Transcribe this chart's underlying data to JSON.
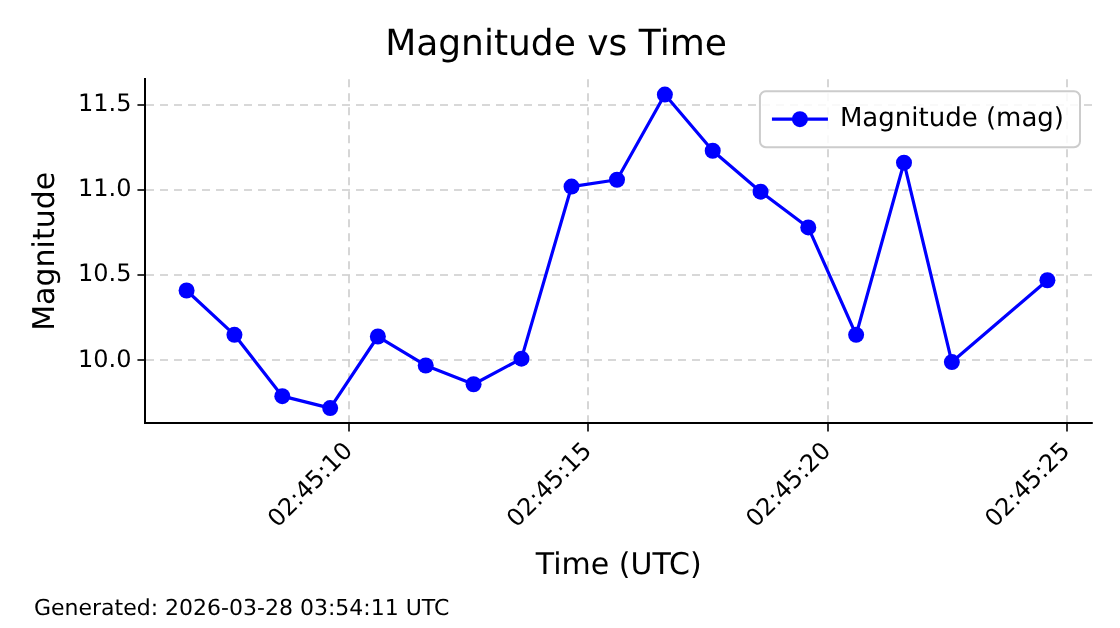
{
  "chart_data": {
    "type": "line",
    "title": "Magnitude vs Time",
    "xlabel": "Time (UTC)",
    "ylabel": "Magnitude",
    "x": [
      2.751833,
      2.752111,
      2.752389,
      2.752667,
      2.752944,
      2.753222,
      2.7535,
      2.753778,
      2.754069,
      2.754333,
      2.754611,
      2.754889,
      2.755167,
      2.755444,
      2.755722,
      2.756,
      2.756278,
      2.756833
    ],
    "series": [
      {
        "name": "Magnitude (mag)",
        "color": "#0000ff",
        "values": [
          10.41,
          10.15,
          9.79,
          9.72,
          10.14,
          9.97,
          9.86,
          10.01,
          11.02,
          11.06,
          11.56,
          11.23,
          10.99,
          10.78,
          10.15,
          11.16,
          9.99,
          10.47
        ]
      }
    ],
    "xlim": [
      2.751594,
      2.757092
    ],
    "xticks": [
      {
        "value": 2.752778,
        "label": "02:45:10"
      },
      {
        "value": 2.754167,
        "label": "02:45:15"
      },
      {
        "value": 2.755556,
        "label": "02:45:20"
      },
      {
        "value": 2.756944,
        "label": "02:45:25"
      }
    ],
    "ylim": [
      9.63,
      11.65
    ],
    "yticks": [
      {
        "value": 10,
        "label": "10.0"
      },
      {
        "value": 10.5,
        "label": "10.5"
      },
      {
        "value": 11,
        "label": "11.0"
      },
      {
        "value": 11.5,
        "label": "11.5"
      }
    ],
    "grid": true,
    "legend": "top right",
    "marker": "circle",
    "line_style": "solid",
    "annotations": [
      "Generated: 2026-03-28 03:54:11 UTC"
    ]
  }
}
